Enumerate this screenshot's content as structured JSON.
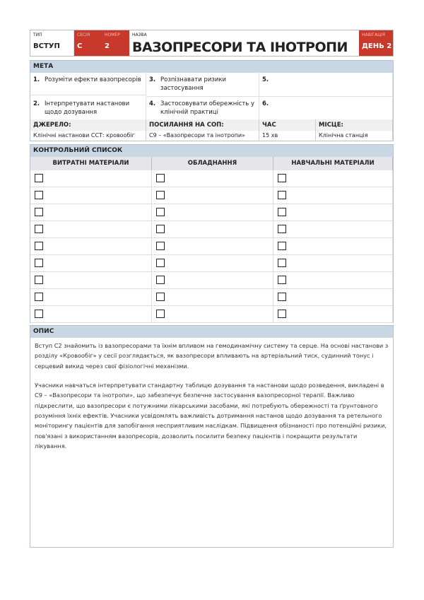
{
  "header": {
    "type_label": "Тип",
    "type_value": "ВСТУП",
    "session_label": "Сесія",
    "session_value": "С",
    "number_label": "Номер",
    "number_value": "2",
    "title_label": "Назва",
    "title": "ВАЗОПРЕСОРИ ТА ІНОТРОПИ",
    "nav_label": "Навігація",
    "nav_value": "ДЕНЬ 2",
    "accent": "#c8392b"
  },
  "meta": {
    "heading": "МЕТА",
    "goals": [
      {
        "n": "1.",
        "text": "Розуміти ефекти вазопресорів"
      },
      {
        "n": "3.",
        "text": "Розпізнавати ризики застосування"
      },
      {
        "n": "5.",
        "text": ""
      },
      {
        "n": "2.",
        "text": "Інтерпретувати настанови щодо дозування"
      },
      {
        "n": "4.",
        "text": "Застосовувати обережність у клінічній практиці"
      },
      {
        "n": "6.",
        "text": ""
      }
    ],
    "source_label": "ДЖЕРЕЛО:",
    "source": "Клінічні настанови ССТ: кровообіг",
    "sop_label": "ПОСИЛАННЯ НА СОП:",
    "sop": "С9 – «Вазопресори та інотропи»",
    "time_label": "ЧАС",
    "time": "15 хв",
    "place_label": "МІСЦЕ:",
    "place": "Клінічна станція"
  },
  "checklist": {
    "heading": "КОНТРОЛЬНИЙ СПИСОК",
    "columns": [
      "ВИТРАТНІ МАТЕРІАЛИ",
      "ОБЛАДНАННЯ",
      "НАВЧАЛЬНІ МАТЕРІАЛИ"
    ]
  },
  "description": {
    "heading": "ОПИС",
    "paragraphs": [
      "Вступ С2 знайомить із вазопресорами та їхнім впливом на гемодинамічну систему та серце. На основі настанови з розділу «Кровообіг» у сесії розглядається, як вазопресори впливають на артеріальний тиск, судинний тонус і серцевий викид через свої фізіологічні механізми.",
      " Учасники навчаться інтерпретувати стандартну таблицю дозування та настанови щодо розведення, викладені в С9 – «Вазопресори та інотропи», що забезпечує безпечне застосування вазопресорної терапії. Важливо підкреслити, що вазопресори є потужними лікарськими засобами, які потребують обережності та ґрунтовного розуміння їхніх ефектів. Учасники усвідомлять важливість дотримання настанов щодо дозування та ретельного моніторингу пацієнтів для запобігання несприятливим наслідкам. Підвищення обізнаності про потенційні ризики, пов'язані з використанням вазопресорів, дозволить посилити безпеку пацієнтів і покращити результати лікування."
    ]
  }
}
